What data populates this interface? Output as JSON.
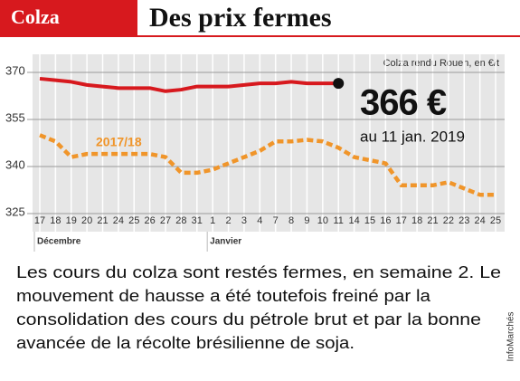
{
  "header": {
    "tag": "Colza",
    "title": "Des prix fermes"
  },
  "chart_data": {
    "type": "line",
    "axis_note": "Colza rendu Rouen, en €/t",
    "categories": [
      "17",
      "18",
      "19",
      "20",
      "21",
      "24",
      "25",
      "26",
      "27",
      "28",
      "31",
      "1",
      "2",
      "3",
      "4",
      "7",
      "8",
      "9",
      "10",
      "11",
      "14",
      "15",
      "16",
      "17",
      "18",
      "21",
      "22",
      "23",
      "24",
      "25"
    ],
    "x_groups": [
      {
        "label": "Décembre",
        "from": 0
      },
      {
        "label": "Janvier",
        "from": 11
      }
    ],
    "series": [
      {
        "color": "#d7191e",
        "values": [
          368,
          367.5,
          367,
          366,
          365.5,
          365,
          365,
          365,
          364,
          364.5,
          365.5,
          365.5,
          365.5,
          366,
          366.5,
          366.5,
          367,
          366.5,
          366.5,
          366.5,
          null,
          null,
          null,
          null,
          null,
          null,
          null,
          null,
          null,
          null
        ]
      },
      {
        "name": "2017/18",
        "color": "#f0952a",
        "values": [
          350,
          348,
          343,
          344,
          344,
          344,
          344,
          344,
          343,
          338,
          338,
          339,
          341,
          343,
          345,
          348,
          348,
          348.5,
          348,
          346,
          343,
          342,
          341,
          334,
          334,
          334,
          335,
          333,
          331,
          331
        ]
      }
    ],
    "callout": {
      "value": 366,
      "label": "366 €",
      "date": "au 11 jan. 2019"
    },
    "ylim": [
      325,
      370
    ],
    "yticks": [
      325,
      340,
      355,
      370
    ],
    "grid": true
  },
  "text": {
    "lines": [
      "Les cours du colza sont restés fermes, en semaine 2. Le",
      "mouvement de hausse a été toutefois freiné par la",
      "consolidation des cours du pétrole brut et par la bonne",
      "avancée de la récolte brésilienne de soja."
    ],
    "source": "InfoMarchés"
  }
}
